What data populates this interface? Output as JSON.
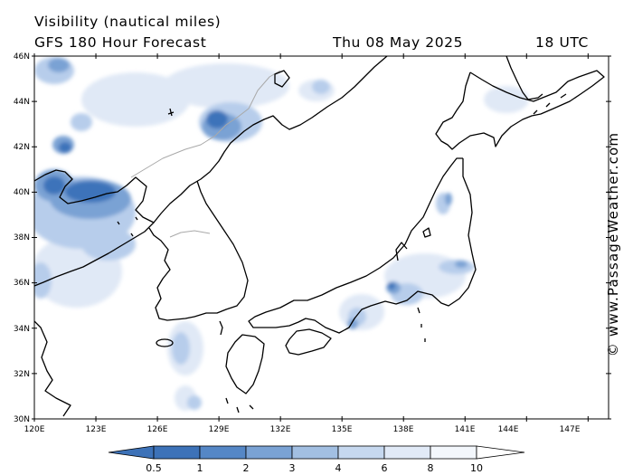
{
  "header": {
    "title": "Visibility (nautical miles)",
    "model": "GFS 180 Hour Forecast",
    "date": "Thu 08 May 2025",
    "time": "18 UTC"
  },
  "credit": "© www.PassageWeather.com",
  "axes": {
    "lat_labels": [
      "46N",
      "44N",
      "42N",
      "40N",
      "38N",
      "36N",
      "34N",
      "32N",
      "30N"
    ],
    "lon_labels": [
      "120E",
      "123E",
      "126E",
      "129E",
      "132E",
      "135E",
      "138E",
      "141E",
      "144E",
      "147E"
    ]
  },
  "legend": {
    "ticks": [
      "0.5",
      "1",
      "2",
      "3",
      "4",
      "6",
      "8",
      "10"
    ],
    "colors": [
      "#3d72b8",
      "#5587c6",
      "#7aa2d4",
      "#a2bfe2",
      "#c6d8ef",
      "#e1eaf7",
      "#f3f7fc",
      "#ffffff"
    ]
  },
  "map_data": {
    "lat_range": [
      30,
      46
    ],
    "lon_range": [
      120,
      148
    ],
    "fog_colors": {
      "dense": "#3e73ba",
      "medium": "#78a0d3",
      "light": "#b6cceb",
      "faint": "#d8e4f4"
    }
  }
}
